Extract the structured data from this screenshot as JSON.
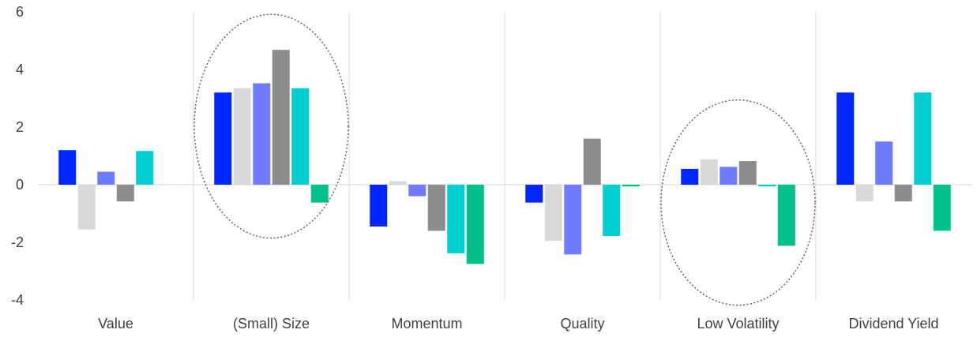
{
  "chart_data": {
    "type": "bar",
    "title": "",
    "xlabel": "",
    "ylabel": "",
    "ylim": [
      -4,
      6
    ],
    "yticks": [
      -4,
      -2,
      0,
      2,
      4,
      6
    ],
    "grid": false,
    "legend": "none",
    "categories": [
      "Value",
      "(Small) Size",
      "Momentum",
      "Quality",
      "Low Volatility",
      "Dividend Yield"
    ],
    "series": [
      {
        "color": "#0026ff",
        "values": [
          1.2,
          3.2,
          -1.45,
          -0.62,
          0.55,
          3.2
        ]
      },
      {
        "color": "#d9d9d9",
        "values": [
          -1.55,
          3.35,
          0.12,
          -1.95,
          0.88,
          -0.58
        ]
      },
      {
        "color": "#6e7dff",
        "values": [
          0.45,
          3.52,
          -0.4,
          -2.42,
          0.62,
          1.5
        ]
      },
      {
        "color": "#8c8c8c",
        "values": [
          -0.58,
          4.68,
          -1.6,
          1.6,
          0.82,
          -0.58
        ]
      },
      {
        "color": "#00ced1",
        "values": [
          1.17,
          3.35,
          -2.38,
          -1.78,
          -0.06,
          3.2
        ]
      },
      {
        "color": "#00c18a",
        "values": [
          0.0,
          -0.62,
          -2.75,
          -0.06,
          -2.12,
          -1.6
        ]
      }
    ],
    "annotations": [
      {
        "shape": "dotted-ellipse",
        "category": "(Small) Size"
      },
      {
        "shape": "dotted-ellipse",
        "category": "Low Volatility"
      }
    ]
  }
}
